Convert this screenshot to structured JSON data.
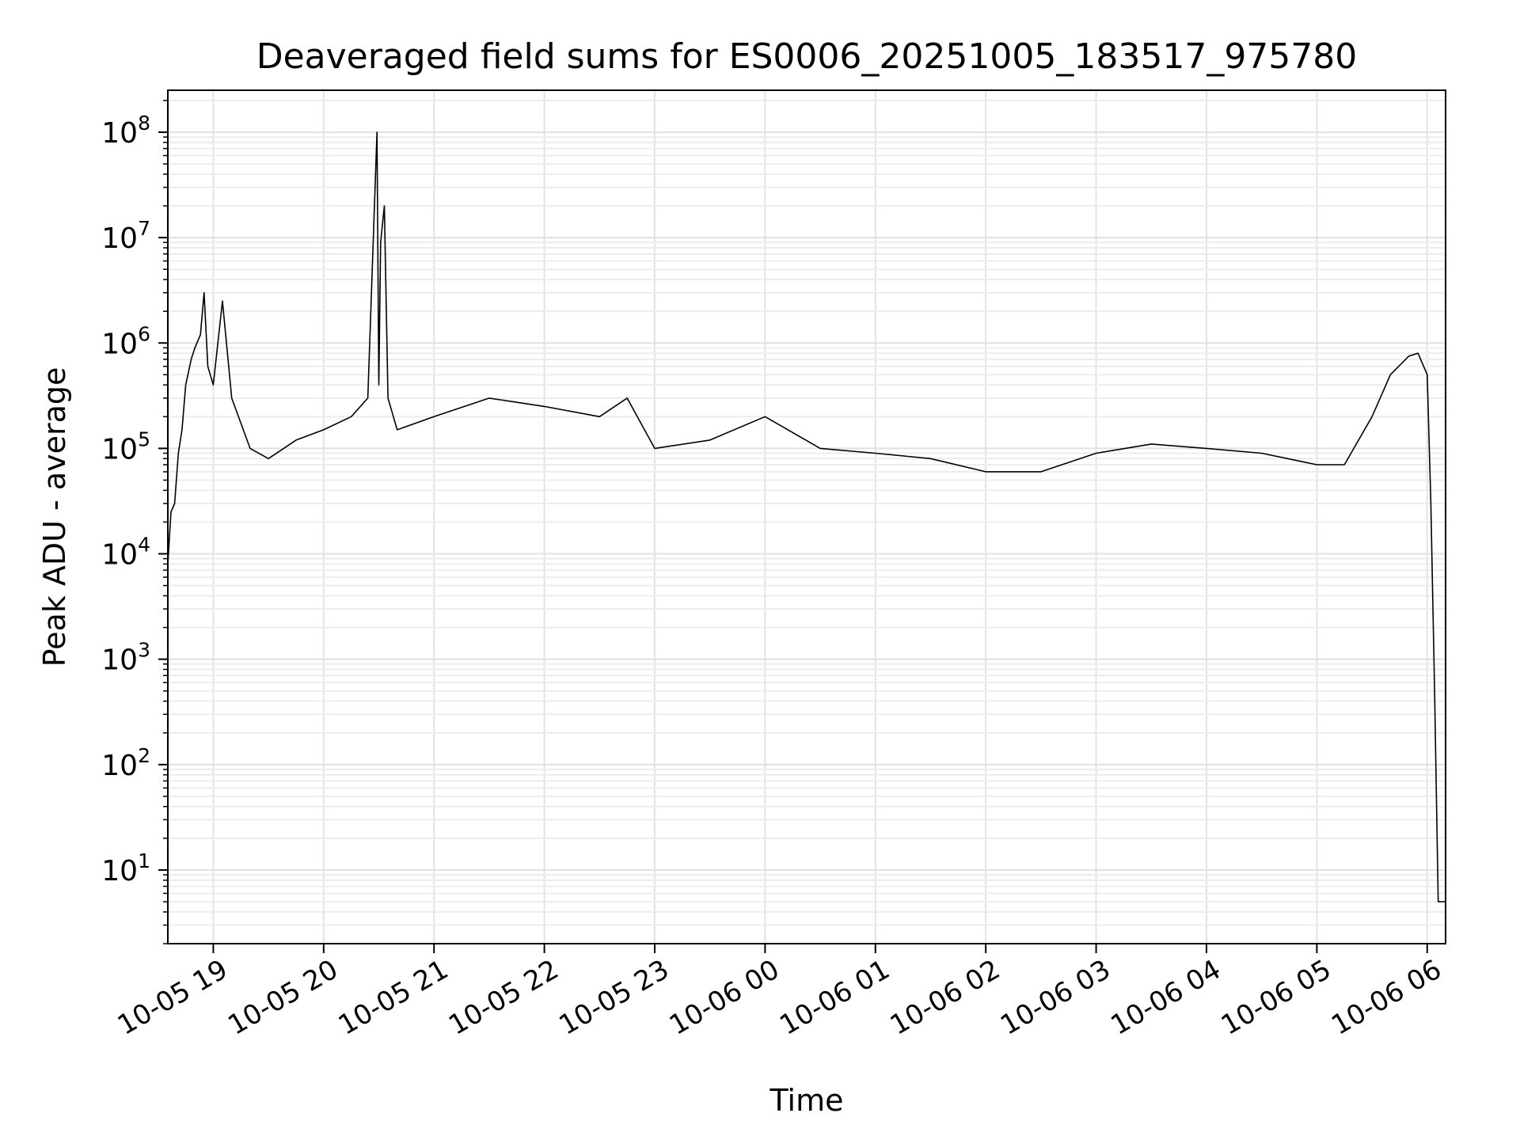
{
  "chart_data": {
    "type": "line",
    "title": "Deaveraged field sums for ES0006_20251005_183517_975780",
    "xlabel": "Time",
    "ylabel": "Peak ADU - average",
    "yscale": "log",
    "grid": "major and minor",
    "legend": "none",
    "line_color": "#000000",
    "xlim": [
      "2025-10-05 18:35:17",
      "2025-10-06 06:10:00"
    ],
    "ylim": [
      2,
      250000000
    ],
    "x_tick_labels": [
      "10-05 19",
      "10-05 20",
      "10-05 21",
      "10-05 22",
      "10-05 23",
      "10-06 00",
      "10-06 01",
      "10-06 02",
      "10-06 03",
      "10-06 04",
      "10-06 05",
      "10-06 06"
    ],
    "x_ticks": [
      "2025-10-05 19:00",
      "2025-10-05 20:00",
      "2025-10-05 21:00",
      "2025-10-05 22:00",
      "2025-10-05 23:00",
      "2025-10-06 00:00",
      "2025-10-06 01:00",
      "2025-10-06 02:00",
      "2025-10-06 03:00",
      "2025-10-06 04:00",
      "2025-10-06 05:00",
      "2025-10-06 06:00"
    ],
    "y_ticks": [
      {
        "value": 10,
        "base": "10",
        "exp": "1"
      },
      {
        "value": 100,
        "base": "10",
        "exp": "2"
      },
      {
        "value": 1000,
        "base": "10",
        "exp": "3"
      },
      {
        "value": 10000,
        "base": "10",
        "exp": "4"
      },
      {
        "value": 100000,
        "base": "10",
        "exp": "5"
      },
      {
        "value": 1000000,
        "base": "10",
        "exp": "6"
      },
      {
        "value": 10000000,
        "base": "10",
        "exp": "7"
      },
      {
        "value": 100000000,
        "base": "10",
        "exp": "8"
      }
    ],
    "series": [
      {
        "x": [
          "2025-10-05 18:35:17",
          "2025-10-05 18:37",
          "2025-10-05 18:39",
          "2025-10-05 18:41",
          "2025-10-05 18:43",
          "2025-10-05 18:45",
          "2025-10-05 18:48",
          "2025-10-05 18:50",
          "2025-10-05 18:53",
          "2025-10-05 18:55",
          "2025-10-05 18:57",
          "2025-10-05 19:00",
          "2025-10-05 19:05",
          "2025-10-05 19:10",
          "2025-10-05 19:20",
          "2025-10-05 19:30",
          "2025-10-05 19:45",
          "2025-10-05 20:00",
          "2025-10-05 20:15",
          "2025-10-05 20:24",
          "2025-10-05 20:29",
          "2025-10-05 20:30",
          "2025-10-05 20:31",
          "2025-10-05 20:33",
          "2025-10-05 20:35",
          "2025-10-05 20:40",
          "2025-10-05 21:00",
          "2025-10-05 21:30",
          "2025-10-05 22:00",
          "2025-10-05 22:30",
          "2025-10-05 22:45",
          "2025-10-05 23:00",
          "2025-10-05 23:30",
          "2025-10-06 00:00",
          "2025-10-06 00:30",
          "2025-10-06 01:00",
          "2025-10-06 01:30",
          "2025-10-06 02:00",
          "2025-10-06 02:30",
          "2025-10-06 03:00",
          "2025-10-06 03:30",
          "2025-10-06 04:00",
          "2025-10-06 04:30",
          "2025-10-06 05:00",
          "2025-10-06 05:15",
          "2025-10-06 05:30",
          "2025-10-06 05:40",
          "2025-10-06 05:50",
          "2025-10-06 05:55",
          "2025-10-06 06:00",
          "2025-10-06 06:02",
          "2025-10-06 06:04",
          "2025-10-06 06:06",
          "2025-10-06 06:08",
          "2025-10-06 06:10"
        ],
        "y": [
          8000,
          25000,
          30000,
          90000,
          150000,
          400000,
          700000,
          900000,
          1200000,
          3000000,
          600000,
          400000,
          2500000,
          300000,
          100000,
          80000,
          120000,
          150000,
          200000,
          300000,
          100000000,
          400000,
          9000000,
          20000000,
          300000,
          150000,
          200000,
          300000,
          250000,
          200000,
          300000,
          100000,
          120000,
          200000,
          100000,
          90000,
          80000,
          60000,
          60000,
          90000,
          110000,
          100000,
          90000,
          70000,
          70000,
          200000,
          500000,
          750000,
          800000,
          500000,
          30000,
          500,
          5,
          5,
          5
        ]
      }
    ]
  }
}
